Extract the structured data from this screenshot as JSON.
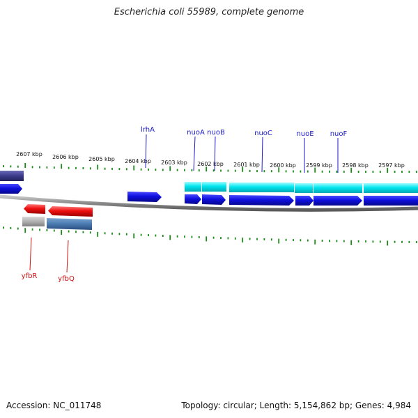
{
  "title": "Escherichia coli 55989, complete genome",
  "footer": {
    "accession": "Accession: NC_011748",
    "summary": "Topology: circular; Length: 5,154,862 bp; Genes: 4,984"
  },
  "colors": {
    "tick": "#1a8a1a",
    "backbone": "#8a8a8a",
    "forward_gene": "#1010e0",
    "forward_cds": "#00e0e8",
    "reverse_gene": "#ee1010",
    "reverse_cds_gray": "#b0b0b0",
    "reverse_cds_steel": "#4a7ab0",
    "edge_block": "#3a3a88",
    "label_forward": "#1a1ac8",
    "label_reverse": "#d01010"
  },
  "ruler": {
    "labels": [
      "2607 kbp",
      "2606 kbp",
      "2605 kbp",
      "2604 kbp",
      "2603 kbp",
      "2602 kbp",
      "2601 kbp",
      "2600 kbp",
      "2599 kbp",
      "2598 kbp",
      "2597 kbp"
    ]
  },
  "gene_labels_forward": [
    "lrhA",
    "nuoA",
    "nuoB",
    "nuoC",
    "nuoE",
    "nuoF"
  ],
  "gene_labels_reverse": [
    "yfbR",
    "yfbQ"
  ]
}
